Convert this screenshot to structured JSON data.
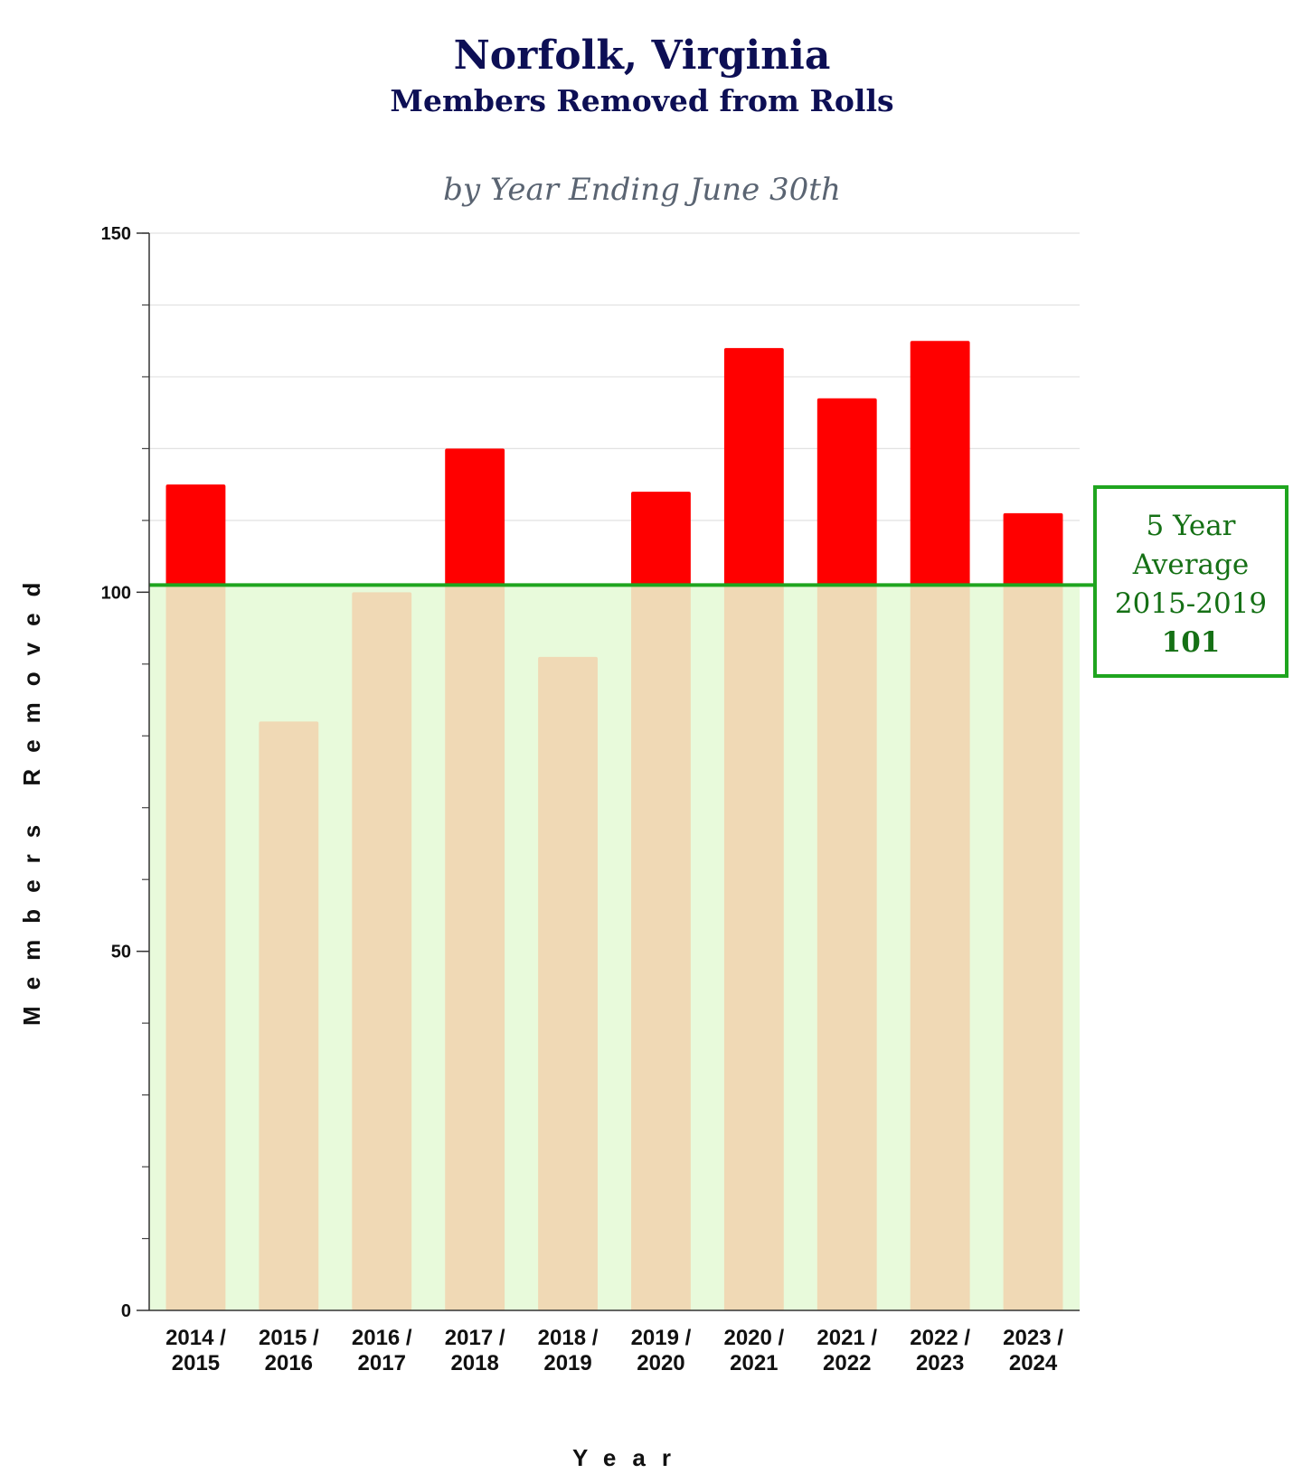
{
  "chart_data": {
    "type": "bar",
    "title": "Norfolk, Virginia",
    "subtitle": "Members Removed from Rolls",
    "caption": "by Year Ending June 30th",
    "xlabel": "Year",
    "ylabel": "Members Removed",
    "ylim": [
      0,
      150
    ],
    "yticks": [
      "0",
      "50",
      "100",
      "150"
    ],
    "categories": [
      [
        "2014 /",
        "2015"
      ],
      [
        "2015 /",
        "2016"
      ],
      [
        "2016 /",
        "2017"
      ],
      [
        "2017 /",
        "2018"
      ],
      [
        "2018 /",
        "2019"
      ],
      [
        "2019 /",
        "2020"
      ],
      [
        "2020 /",
        "2021"
      ],
      [
        "2021 /",
        "2022"
      ],
      [
        "2022 /",
        "2023"
      ],
      [
        "2023 /",
        "2024"
      ]
    ],
    "values": [
      115,
      82,
      100,
      120,
      91,
      114,
      134,
      127,
      135,
      111
    ],
    "grid": true,
    "reference_line": {
      "value": 101,
      "label_lines": [
        "5 Year",
        "Average",
        "2015-2019"
      ],
      "value_label": "101"
    },
    "colors": {
      "above_average": "#ff0000",
      "below_average": "#f0d9b5",
      "average_fill": "#e8fadb",
      "average_line": "#1fa51f",
      "title": "#0d0f55"
    }
  }
}
